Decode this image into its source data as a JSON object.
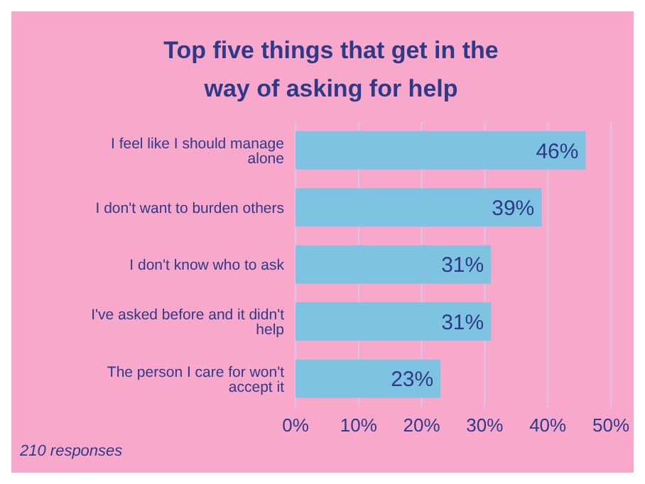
{
  "chart_data": {
    "type": "bar",
    "orientation": "horizontal",
    "title": "Top five things that get in the way of asking for help",
    "categories": [
      "I feel like I should manage alone",
      "I don't want to burden others",
      "I don't know who to ask",
      "I've asked before and it didn't help",
      "The person I care for won't accept it"
    ],
    "values": [
      46,
      39,
      31,
      31,
      23
    ],
    "value_labels": [
      "46%",
      "39%",
      "31%",
      "31%",
      "23%"
    ],
    "color": "#7ec4e2",
    "xlim": [
      0,
      50
    ],
    "xticks": [
      {
        "value": 0,
        "label": "0%"
      },
      {
        "value": 10,
        "label": "10%"
      },
      {
        "value": 20,
        "label": "20%"
      },
      {
        "value": 30,
        "label": "30%"
      },
      {
        "value": 40,
        "label": "40%"
      },
      {
        "value": 50,
        "label": "50%"
      }
    ],
    "grid": "x",
    "annotations": [
      "210 responses"
    ]
  }
}
